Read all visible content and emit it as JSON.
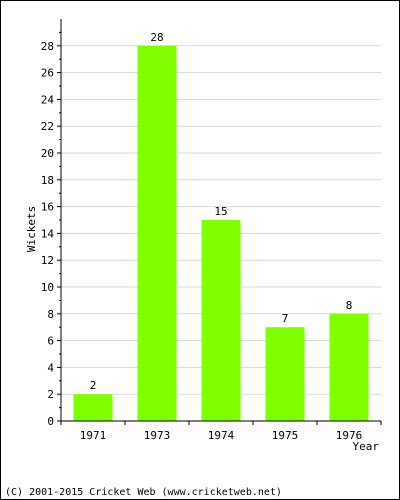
{
  "chart_data": {
    "type": "bar",
    "categories": [
      "1971",
      "1973",
      "1974",
      "1975",
      "1976"
    ],
    "values": [
      2,
      28,
      15,
      7,
      8
    ],
    "data_labels": [
      "2",
      "28",
      "15",
      "7",
      "8"
    ],
    "ylabel": "Wickets",
    "xlabel": "Year",
    "ylim": [
      0,
      30
    ],
    "yticks": [
      0,
      2,
      4,
      6,
      8,
      10,
      12,
      14,
      16,
      18,
      20,
      22,
      24,
      26,
      28
    ],
    "grid": true,
    "bar_color": "#80ff00",
    "grid_color": "#d8d8d8"
  },
  "footer": {
    "copyright": "(C) 2001-2015 Cricket Web (www.cricketweb.net)"
  }
}
